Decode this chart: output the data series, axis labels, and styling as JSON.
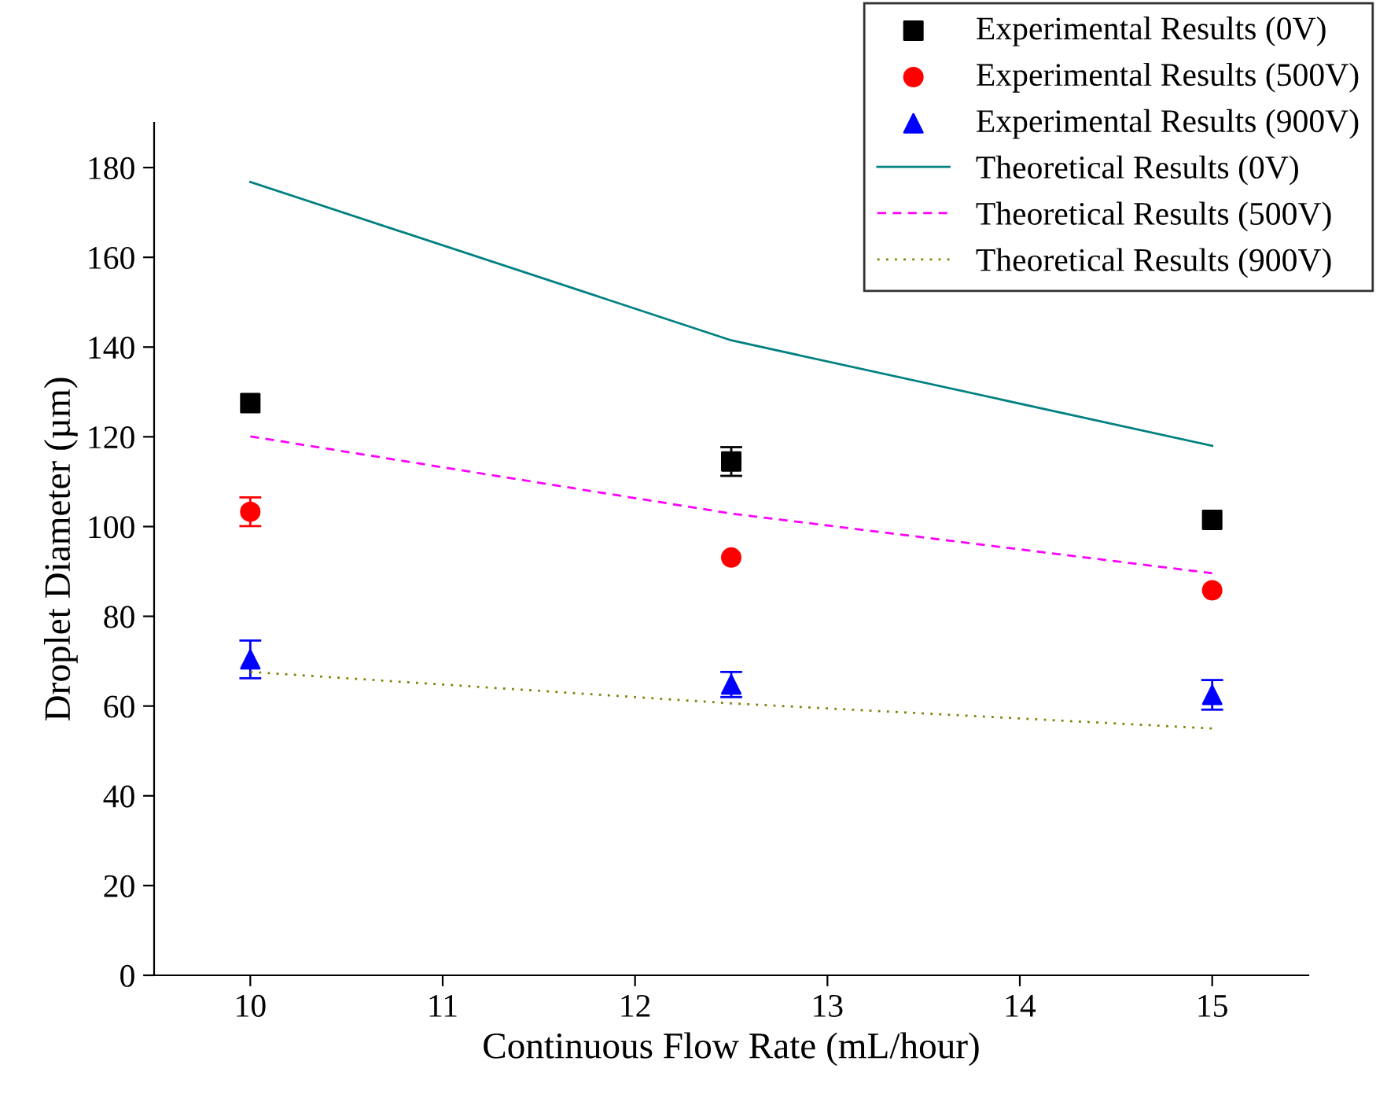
{
  "chart_data": {
    "type": "scatter",
    "xlabel": "Continuous Flow Rate (mL/hour)",
    "ylabel": "Droplet Diameter (µm)",
    "xlim": [
      9.5,
      15.5
    ],
    "xticks": [
      10,
      11,
      12,
      13,
      14,
      15
    ],
    "ylim": [
      0,
      190
    ],
    "yticks": [
      0,
      20,
      40,
      60,
      80,
      100,
      120,
      140,
      160,
      180
    ],
    "grid": false,
    "legend": "top right",
    "series": [
      {
        "name": "Experimental Results (0V)",
        "marker": "square",
        "color": "#000000",
        "x": [
          10,
          12.5,
          15
        ],
        "values": [
          127.5,
          114.5,
          101.5
        ],
        "errors": [
          null,
          3.2,
          null
        ]
      },
      {
        "name": "Experimental Results (500V)",
        "marker": "circle",
        "color": "#ff0000",
        "x": [
          10,
          12.5,
          15
        ],
        "values": [
          103.3,
          93.1,
          85.8
        ],
        "errors": [
          3.2,
          null,
          null
        ]
      },
      {
        "name": "Experimental Results (900V)",
        "marker": "triangle",
        "color": "#0000ff",
        "x": [
          10,
          12.5,
          15
        ],
        "values": [
          70.4,
          64.8,
          62.5
        ],
        "errors": [
          4.2,
          2.8,
          3.3
        ]
      },
      {
        "name": "Theoretical Results (0V)",
        "type": "line",
        "line_style": "solid",
        "color": "#008080",
        "x": [
          10,
          12.5,
          15
        ],
        "values": [
          176.8,
          141.5,
          118
        ]
      },
      {
        "name": "Theoretical Results (500V)",
        "type": "line",
        "line_style": "dashed",
        "color": "#ff00ff",
        "x": [
          10,
          12.5,
          15
        ],
        "values": [
          120.1,
          102.9,
          89.6
        ]
      },
      {
        "name": "Theoretical Results (900V)",
        "type": "line",
        "line_style": "dotted",
        "color": "#808000",
        "x": [
          10,
          12.5,
          15
        ],
        "values": [
          67.6,
          60.6,
          55
        ]
      }
    ]
  }
}
